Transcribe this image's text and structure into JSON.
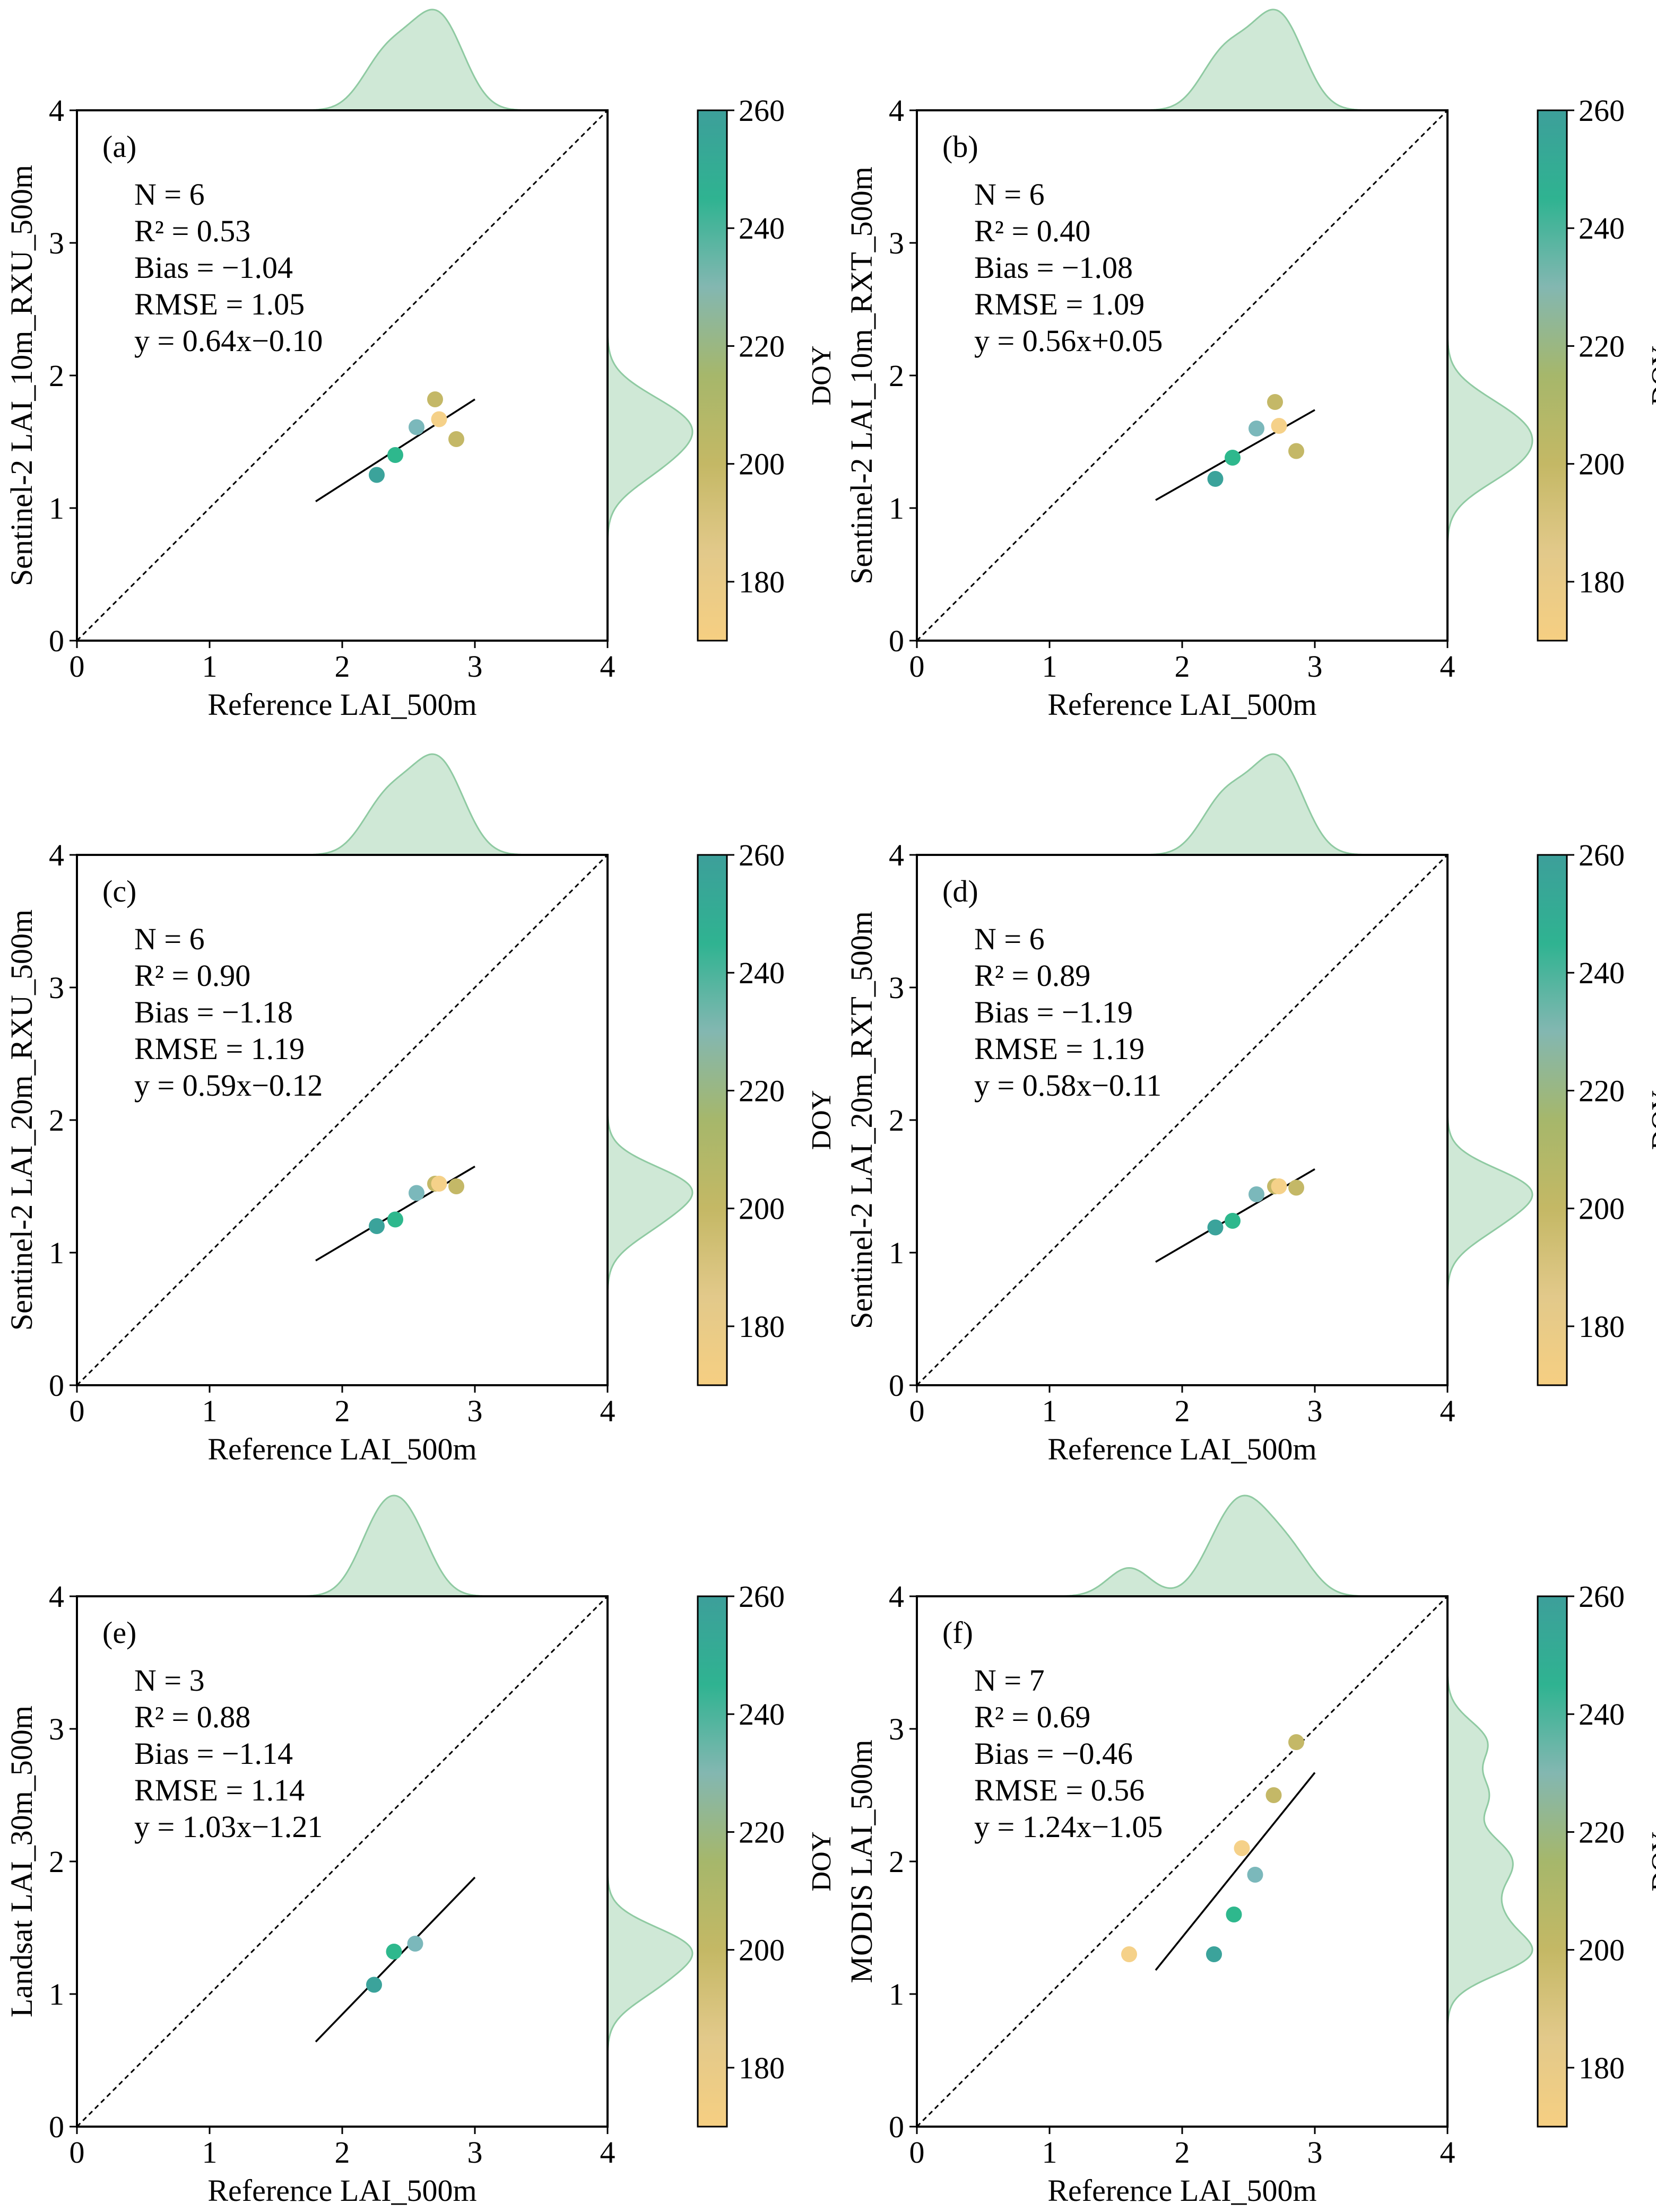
{
  "figure": {
    "x_label": "Reference LAI_500m",
    "colorbar_label": "DOY",
    "colorbar_ticks": [
      "180",
      "200",
      "220",
      "240",
      "260"
    ],
    "colorbar_range": [
      170,
      260
    ],
    "colorbar_colors": [
      "#f6cf82",
      "#e2c98a",
      "#c4b865",
      "#a6b76b",
      "#83b7b1",
      "#2fb391",
      "#3d9f9a"
    ],
    "kde_color": "#a8d5b5",
    "point_colors": {
      "teal": "#3ba39b",
      "green": "#2eb88d",
      "lightblue": "#7bb8bb",
      "olive": "#c4b867",
      "yellow": "#f5d189"
    }
  },
  "chart_data": [
    {
      "type": "scatter",
      "panel": "(a)",
      "ylabel": "Sentinel-2 LAI_10m_RXU_500m",
      "xlim": [
        0,
        4
      ],
      "ylim": [
        0,
        4
      ],
      "ticks": [
        "0",
        "1",
        "2",
        "3",
        "4"
      ],
      "stats": [
        "N = 6",
        "R² = 0.53",
        "Bias = −1.04",
        "RMSE = 1.05",
        "y = 0.64x−0.10"
      ],
      "fit": {
        "x": [
          1.8,
          3.0
        ],
        "y": [
          1.05,
          1.82
        ]
      },
      "points": [
        {
          "x": 2.26,
          "y": 1.25,
          "color": "teal"
        },
        {
          "x": 2.4,
          "y": 1.4,
          "color": "green"
        },
        {
          "x": 2.56,
          "y": 1.61,
          "color": "lightblue"
        },
        {
          "x": 2.7,
          "y": 1.82,
          "color": "olive"
        },
        {
          "x": 2.73,
          "y": 1.67,
          "color": "yellow"
        },
        {
          "x": 2.86,
          "y": 1.52,
          "color": "olive"
        }
      ]
    },
    {
      "type": "scatter",
      "panel": "(b)",
      "ylabel": "Sentinel-2 LAI_10m_RXT_500m",
      "xlim": [
        0,
        4
      ],
      "ylim": [
        0,
        4
      ],
      "ticks": [
        "0",
        "1",
        "2",
        "3",
        "4"
      ],
      "stats": [
        "N = 6",
        "R² = 0.40",
        "Bias = −1.08",
        "RMSE = 1.09",
        "y = 0.56x+0.05"
      ],
      "fit": {
        "x": [
          1.8,
          3.0
        ],
        "y": [
          1.06,
          1.74
        ]
      },
      "points": [
        {
          "x": 2.25,
          "y": 1.22,
          "color": "teal"
        },
        {
          "x": 2.38,
          "y": 1.38,
          "color": "green"
        },
        {
          "x": 2.56,
          "y": 1.6,
          "color": "lightblue"
        },
        {
          "x": 2.7,
          "y": 1.8,
          "color": "olive"
        },
        {
          "x": 2.73,
          "y": 1.62,
          "color": "yellow"
        },
        {
          "x": 2.86,
          "y": 1.43,
          "color": "olive"
        }
      ]
    },
    {
      "type": "scatter",
      "panel": "(c)",
      "ylabel": "Sentinel-2 LAI_20m_RXU_500m",
      "xlim": [
        0,
        4
      ],
      "ylim": [
        0,
        4
      ],
      "ticks": [
        "0",
        "1",
        "2",
        "3",
        "4"
      ],
      "stats": [
        "N = 6",
        "R² = 0.90",
        "Bias = −1.18",
        "RMSE = 1.19",
        "y = 0.59x−0.12"
      ],
      "fit": {
        "x": [
          1.8,
          3.0
        ],
        "y": [
          0.94,
          1.65
        ]
      },
      "points": [
        {
          "x": 2.26,
          "y": 1.2,
          "color": "teal"
        },
        {
          "x": 2.4,
          "y": 1.25,
          "color": "green"
        },
        {
          "x": 2.56,
          "y": 1.45,
          "color": "lightblue"
        },
        {
          "x": 2.7,
          "y": 1.52,
          "color": "olive"
        },
        {
          "x": 2.73,
          "y": 1.52,
          "color": "yellow"
        },
        {
          "x": 2.86,
          "y": 1.5,
          "color": "olive"
        }
      ]
    },
    {
      "type": "scatter",
      "panel": "(d)",
      "ylabel": "Sentinel-2 LAI_20m_RXT_500m",
      "xlim": [
        0,
        4
      ],
      "ylim": [
        0,
        4
      ],
      "ticks": [
        "0",
        "1",
        "2",
        "3",
        "4"
      ],
      "stats": [
        "N = 6",
        "R² = 0.89",
        "Bias = −1.19",
        "RMSE = 1.19",
        "y = 0.58x−0.11"
      ],
      "fit": {
        "x": [
          1.8,
          3.0
        ],
        "y": [
          0.93,
          1.63
        ]
      },
      "points": [
        {
          "x": 2.25,
          "y": 1.19,
          "color": "teal"
        },
        {
          "x": 2.38,
          "y": 1.24,
          "color": "green"
        },
        {
          "x": 2.56,
          "y": 1.44,
          "color": "lightblue"
        },
        {
          "x": 2.7,
          "y": 1.5,
          "color": "olive"
        },
        {
          "x": 2.73,
          "y": 1.5,
          "color": "yellow"
        },
        {
          "x": 2.86,
          "y": 1.49,
          "color": "olive"
        }
      ]
    },
    {
      "type": "scatter",
      "panel": "(e)",
      "ylabel": "Landsat LAI_30m_500m",
      "xlim": [
        0,
        4
      ],
      "ylim": [
        0,
        4
      ],
      "ticks": [
        "0",
        "1",
        "2",
        "3",
        "4"
      ],
      "stats": [
        "N = 3",
        "R² = 0.88",
        "Bias = −1.14",
        "RMSE = 1.14",
        "y = 1.03x−1.21"
      ],
      "fit": {
        "x": [
          1.8,
          3.0
        ],
        "y": [
          0.64,
          1.88
        ]
      },
      "points": [
        {
          "x": 2.24,
          "y": 1.07,
          "color": "teal"
        },
        {
          "x": 2.39,
          "y": 1.32,
          "color": "green"
        },
        {
          "x": 2.55,
          "y": 1.38,
          "color": "lightblue"
        }
      ]
    },
    {
      "type": "scatter",
      "panel": "(f)",
      "ylabel": "MODIS LAI_500m",
      "xlim": [
        0,
        4
      ],
      "ylim": [
        0,
        4
      ],
      "ticks": [
        "0",
        "1",
        "2",
        "3",
        "4"
      ],
      "stats": [
        "N = 7",
        "R² = 0.69",
        "Bias = −0.46",
        "RMSE = 0.56",
        "y = 1.24x−1.05"
      ],
      "fit": {
        "x": [
          1.8,
          3.0
        ],
        "y": [
          1.18,
          2.67
        ]
      },
      "points": [
        {
          "x": 1.6,
          "y": 1.3,
          "color": "yellow"
        },
        {
          "x": 2.24,
          "y": 1.3,
          "color": "teal"
        },
        {
          "x": 2.39,
          "y": 1.6,
          "color": "green"
        },
        {
          "x": 2.45,
          "y": 2.1,
          "color": "yellow"
        },
        {
          "x": 2.55,
          "y": 1.9,
          "color": "lightblue"
        },
        {
          "x": 2.69,
          "y": 2.5,
          "color": "olive"
        },
        {
          "x": 2.86,
          "y": 2.9,
          "color": "olive"
        }
      ]
    }
  ]
}
